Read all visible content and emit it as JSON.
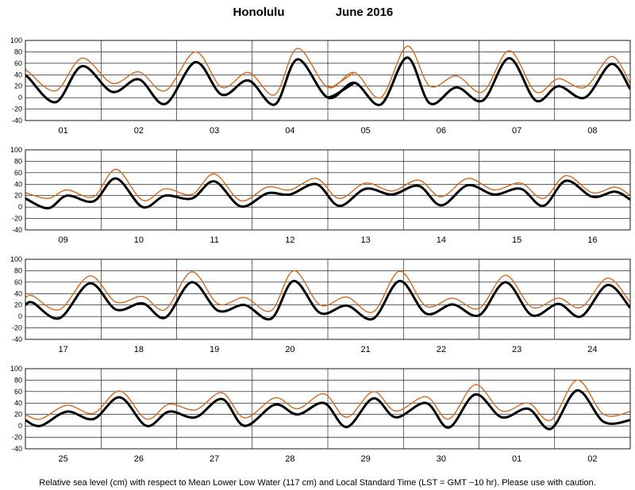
{
  "title": {
    "station": "Honolulu",
    "period": "June   2016"
  },
  "footnote": "Relative sea level (cm) with respect to Mean Lower Low Water (117 cm) and Local Standard Time (LST = GMT −10 hr). Please use with caution.",
  "chart_data": {
    "type": "line",
    "ylim": [
      -40,
      100
    ],
    "yticks": [
      -40,
      -20,
      0,
      20,
      40,
      60,
      80,
      100
    ],
    "grid": true,
    "series": [
      {
        "color": "#d2691e"
      },
      {
        "color": "#000000"
      }
    ],
    "panels": [
      {
        "days": [
          "01",
          "02",
          "03",
          "04",
          "05",
          "06",
          "07",
          "08"
        ],
        "curves": [
          {
            "x": [
              0,
              0.04,
              0.4,
              0.75,
              1.15,
              1.5,
              1.85,
              2.25,
              2.6,
              2.95,
              3.3,
              3.6,
              4.0,
              4.35,
              4.7,
              5.05,
              5.35,
              5.7,
              6.05,
              6.4,
              6.75,
              7.05,
              7.4,
              7.75,
              8.0
            ],
            "black": [
              38,
              35,
              -8,
              55,
              10,
              32,
              -11,
              62,
              5,
              30,
              -12,
              67,
              0,
              26,
              -12,
              70,
              -10,
              18,
              -5,
              69,
              -5,
              20,
              0,
              59,
              15
            ],
            "orange": [
              50,
              45,
              12,
              69,
              25,
              45,
              12,
              80,
              18,
              44,
              5,
              86,
              18,
              44,
              0,
              90,
              20,
              38,
              10,
              82,
              10,
              33,
              18,
              72,
              25
            ]
          },
          {
            "x": [
              4.0,
              4.1,
              4.35
            ],
            "black": [
              0,
              5,
              26
            ],
            "orange": [
              18,
              22,
              44
            ]
          }
        ]
      },
      {
        "days": [
          "09",
          "10",
          "11",
          "12",
          "13",
          "14",
          "15",
          "16"
        ],
        "curves": [
          {
            "x": [
              0,
              0.3,
              0.55,
              0.9,
              1.2,
              1.55,
              1.85,
              2.2,
              2.5,
              2.85,
              3.2,
              3.5,
              3.85,
              4.15,
              4.5,
              4.85,
              5.2,
              5.5,
              5.85,
              6.2,
              6.55,
              6.85,
              7.15,
              7.5,
              7.8,
              8.0
            ],
            "black": [
              15,
              -2,
              20,
              10,
              50,
              0,
              20,
              15,
              45,
              1,
              24,
              22,
              40,
              2,
              32,
              22,
              37,
              3,
              38,
              22,
              32,
              2,
              46,
              18,
              27,
              13
            ],
            "orange": [
              25,
              15,
              30,
              18,
              66,
              12,
              32,
              22,
              58,
              11,
              35,
              30,
              50,
              15,
              42,
              28,
              47,
              18,
              50,
              30,
              42,
              15,
              55,
              25,
              35,
              20
            ]
          }
        ]
      },
      {
        "days": [
          "17",
          "18",
          "19",
          "20",
          "21",
          "22",
          "23",
          "24"
        ],
        "curves": [
          {
            "x": [
              0,
              0.1,
              0.45,
              0.85,
              1.2,
              1.55,
              1.85,
              2.2,
              2.55,
              2.9,
              3.25,
              3.55,
              3.9,
              4.25,
              4.6,
              4.95,
              5.3,
              5.65,
              6.0,
              6.35,
              6.7,
              7.05,
              7.35,
              7.7,
              8.0
            ],
            "black": [
              20,
              24,
              -3,
              58,
              12,
              23,
              -2,
              60,
              10,
              20,
              -4,
              62,
              6,
              19,
              -4,
              62,
              5,
              21,
              2,
              60,
              2,
              22,
              0,
              55,
              15
            ],
            "orange": [
              33,
              36,
              12,
              71,
              25,
              35,
              12,
              78,
              22,
              33,
              10,
              80,
              20,
              34,
              8,
              79,
              18,
              32,
              14,
              72,
              16,
              32,
              16,
              67,
              25
            ]
          }
        ]
      },
      {
        "days": [
          "25",
          "26",
          "27",
          "28",
          "29",
          "30",
          "01",
          "02"
        ],
        "curves": [
          {
            "x": [
              0,
              0.2,
              0.55,
              0.9,
              1.25,
              1.6,
              1.9,
              2.25,
              2.6,
              2.9,
              3.3,
              3.6,
              3.95,
              4.25,
              4.6,
              4.9,
              5.3,
              5.6,
              5.95,
              6.3,
              6.65,
              6.95,
              7.3,
              7.65,
              8.0
            ],
            "black": [
              10,
              0,
              25,
              12,
              50,
              0,
              25,
              15,
              47,
              0,
              37,
              20,
              40,
              -2,
              48,
              15,
              40,
              -3,
              55,
              15,
              30,
              -5,
              62,
              7,
              10
            ],
            "orange": [
              20,
              12,
              36,
              22,
              61,
              12,
              38,
              28,
              58,
              14,
              49,
              30,
              56,
              15,
              60,
              26,
              51,
              12,
              72,
              26,
              40,
              10,
              80,
              20,
              25
            ]
          }
        ]
      }
    ]
  }
}
